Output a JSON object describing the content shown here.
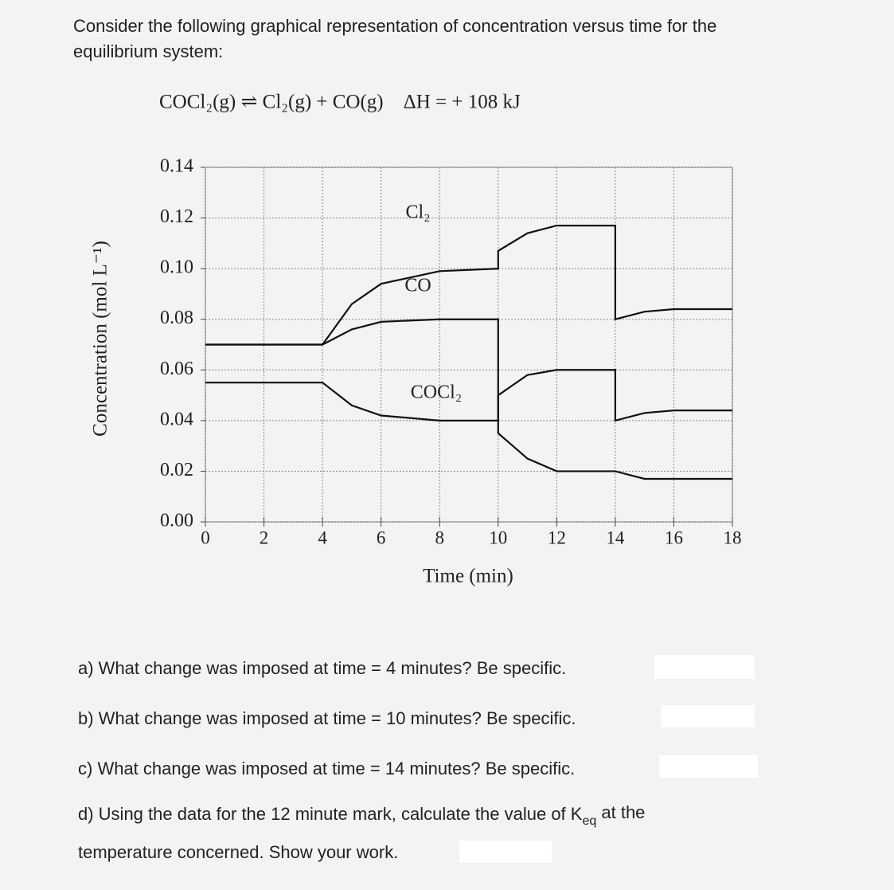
{
  "intro": "Consider the following graphical representation of concentration versus time for the",
  "intro_cont": "equilibrium system:",
  "equation": "COCl₂(g) ⇌ Cl₂(g) + CO(g)    ΔH = + 108 kJ",
  "chart_data": {
    "type": "line",
    "xlabel": "Time (min)",
    "ylabel": "Concentration (mol L⁻¹)",
    "xlim": [
      0,
      18
    ],
    "xticks": [
      0,
      2,
      4,
      6,
      8,
      10,
      12,
      14,
      16,
      18
    ],
    "ylim": [
      0,
      0.14
    ],
    "yticks": [
      {
        "value": 0,
        "label": "0.00"
      },
      0.02,
      0.04,
      0.06,
      0.08,
      {
        "value": 0.1,
        "label": "0.10"
      },
      0.12,
      0.14
    ],
    "grid": true,
    "series": [
      {
        "name": "Cl₂",
        "color": "#111111",
        "x": [
          0,
          4,
          5,
          6,
          8,
          10,
          10,
          11,
          12,
          14,
          14,
          15,
          16,
          18
        ],
        "values": [
          0.07,
          0.07,
          0.086,
          0.094,
          0.099,
          0.1,
          0.107,
          0.114,
          0.117,
          0.117,
          0.08,
          0.083,
          0.084,
          0.084
        ]
      },
      {
        "name": "CO",
        "color": "#111111",
        "x": [
          0,
          4,
          5,
          6,
          8,
          10,
          10,
          11,
          12,
          14,
          15,
          18
        ],
        "values": [
          0.07,
          0.07,
          0.076,
          0.079,
          0.08,
          0.08,
          0.035,
          0.025,
          0.02,
          0.02,
          0.017,
          0.017
        ]
      },
      {
        "name": "COCl₂",
        "color": "#111111",
        "x": [
          0,
          4,
          5,
          6,
          8,
          10,
          10,
          11,
          12,
          14,
          14,
          15,
          16,
          18
        ],
        "values": [
          0.055,
          0.055,
          0.046,
          0.042,
          0.04,
          0.04,
          0.05,
          0.058,
          0.06,
          0.06,
          0.04,
          0.043,
          0.044,
          0.044
        ]
      }
    ]
  },
  "questions": {
    "a": "a) What change was imposed at time = 4 minutes? Be specific.",
    "b": "b) What change was imposed at time = 10 minutes? Be specific.",
    "c": "c) What change was imposed at time = 14 minutes? Be specific.",
    "d": "d) Using the data for the 12 minute mark, calculate the value of K",
    "d_sub": "eq",
    "d_rest": " at the",
    "d_cont": "temperature concerned. Show your work."
  }
}
